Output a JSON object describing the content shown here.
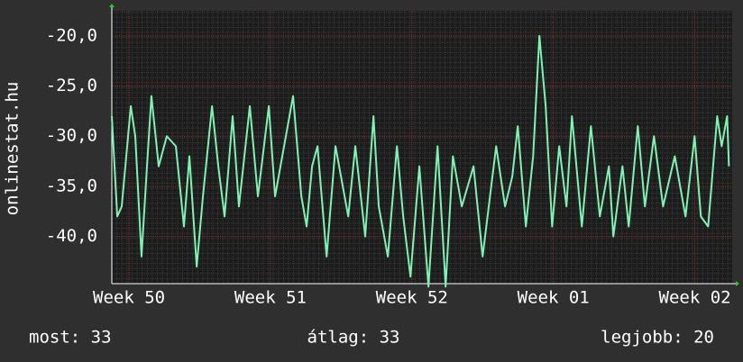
{
  "chart_data": {
    "type": "line",
    "ylabel": "onlinestat.hu",
    "x": [
      0,
      0.27,
      0.49,
      0.94,
      1.16,
      1.47,
      1.74,
      1.96,
      2.32,
      2.72,
      3.17,
      3.57,
      3.84,
      4.2,
      4.51,
      4.96,
      5.27,
      5.58,
      5.98,
      6.29,
      6.83,
      7.23,
      7.77,
      8.08,
      8.97,
      9.38,
      9.64,
      9.91,
      10.18,
      10.63,
      11.07,
      11.7,
      12.05,
      12.54,
      12.95,
      13.21,
      13.66,
      14.11,
      14.42,
      14.78,
      15.22,
      15.67,
      16.12,
      16.52,
      16.88,
      17.32,
      17.9,
      18.35,
      19.02,
      19.46,
      19.82,
      20.09,
      20.49,
      20.85,
      21.16,
      21.47,
      21.79,
      22.14,
      22.5,
      22.77,
      23.26,
      23.71,
      24.15,
      24.6,
      24.82,
      25.27,
      25.58,
      26.03,
      26.38,
      26.83,
      27.28,
      27.86,
      28.39,
      28.84,
      29.15,
      29.51,
      29.96,
      30.18,
      30.45,
      30.54
    ],
    "series": [
      {
        "name": "onlinestat.hu",
        "color": "#80f2b4",
        "values": [
          -28,
          -38,
          -37,
          -27,
          -30,
          -42,
          -33,
          -26,
          -33,
          -30,
          -31,
          -39,
          -32,
          -43,
          -36,
          -27,
          -33,
          -38,
          -28,
          -37,
          -27,
          -36,
          -27,
          -36,
          -26,
          -36,
          -39,
          -33,
          -31,
          -42,
          -31,
          -38,
          -31,
          -40,
          -28,
          -37,
          -42,
          -31,
          -38,
          -44,
          -33,
          -45,
          -31,
          -45,
          -32,
          -37,
          -33,
          -42,
          -31,
          -37,
          -34,
          -29,
          -39,
          -32,
          -20,
          -27,
          -39,
          -31,
          -37,
          -28,
          -39,
          -29,
          -38,
          -33,
          -40,
          -33,
          -39,
          -29,
          -37,
          -30,
          -37,
          -32,
          -38,
          -30,
          -38,
          -39,
          -28,
          -31,
          -28,
          -33
        ]
      }
    ],
    "xlim": [
      0,
      30.7
    ],
    "xticks": [
      {
        "value": 0.85,
        "label": "Week 50"
      },
      {
        "value": 7.85,
        "label": "Week 51"
      },
      {
        "value": 14.85,
        "label": "Week 52"
      },
      {
        "value": 21.85,
        "label": "Week 01"
      },
      {
        "value": 28.85,
        "label": "Week 02"
      }
    ],
    "ylim": [
      -44.7,
      -17.5
    ],
    "yticks": [
      {
        "value": -20,
        "label": "-20,0"
      },
      {
        "value": -25,
        "label": "-25,0"
      },
      {
        "value": -30,
        "label": "-30,0"
      },
      {
        "value": -35,
        "label": "-35,0"
      },
      {
        "value": -40,
        "label": "-40,0"
      }
    ],
    "grid": true,
    "stats": [
      "most: 33",
      "átlag: 33",
      "legjobb: 20"
    ]
  }
}
